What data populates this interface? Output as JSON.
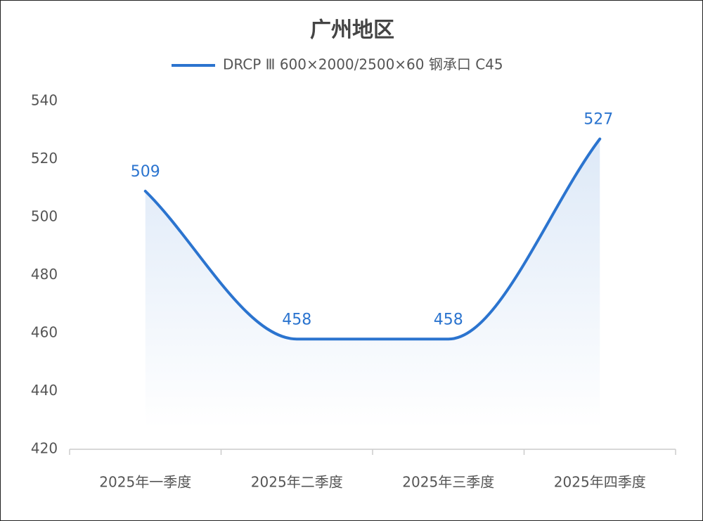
{
  "chart_data": {
    "type": "line",
    "title": "广州地区",
    "categories": [
      "2025年一季度",
      "2025年二季度",
      "2025年三季度",
      "2025年四季度"
    ],
    "series": [
      {
        "name": "DRCP Ⅲ 600×2000/2500×60 钢承口 C45",
        "color": "#2b74cf",
        "values": [
          509,
          458,
          458,
          527
        ]
      }
    ],
    "ylim": [
      420,
      540
    ],
    "yticks": [
      420,
      440,
      460,
      480,
      500,
      520,
      540
    ],
    "grid": false,
    "legend": "top",
    "smooth": true,
    "area": true,
    "data_labels": true
  }
}
